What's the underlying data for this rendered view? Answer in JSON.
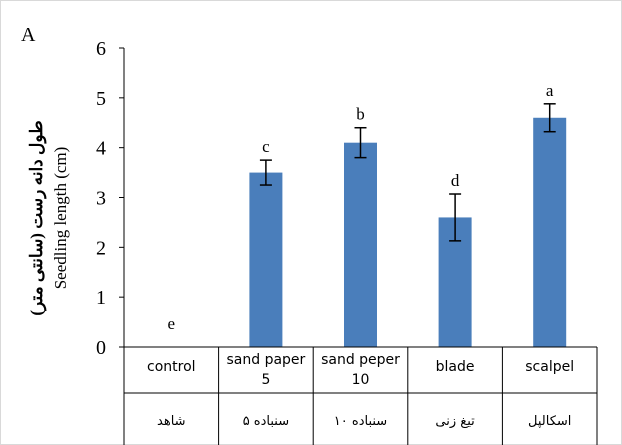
{
  "panel_label": "A",
  "chart_data": {
    "type": "bar",
    "categories": [
      "control",
      "sand paper 5",
      "sand peper 10",
      "blade",
      "scalpel"
    ],
    "category_lines": [
      [
        "control"
      ],
      [
        "sand paper",
        "5"
      ],
      [
        "sand peper",
        "10"
      ],
      [
        "blade"
      ],
      [
        "scalpel"
      ]
    ],
    "categories_fa": [
      "شاهد",
      "سنباده ۵",
      "سنباده ۱۰",
      "تیغ زنی",
      "اسکالپل"
    ],
    "values": [
      0,
      3.5,
      4.1,
      2.6,
      4.6
    ],
    "errors": [
      0,
      0.25,
      0.3,
      0.47,
      0.28
    ],
    "significance_letters": [
      "e",
      "c",
      "b",
      "d",
      "a"
    ],
    "ylabel_fa": "طول دانه رست (سانتی متر)",
    "ylabel": "Seedling length (cm)",
    "ylim": [
      0,
      6
    ],
    "yticks": [
      "0",
      "1",
      "2",
      "3",
      "4",
      "5",
      "6"
    ],
    "grid": false,
    "legend": "none",
    "colors": {
      "bar": "#4a7ebb",
      "error_bar": "#000000",
      "axis": "#000000",
      "frame": "#d9d9d9"
    }
  }
}
